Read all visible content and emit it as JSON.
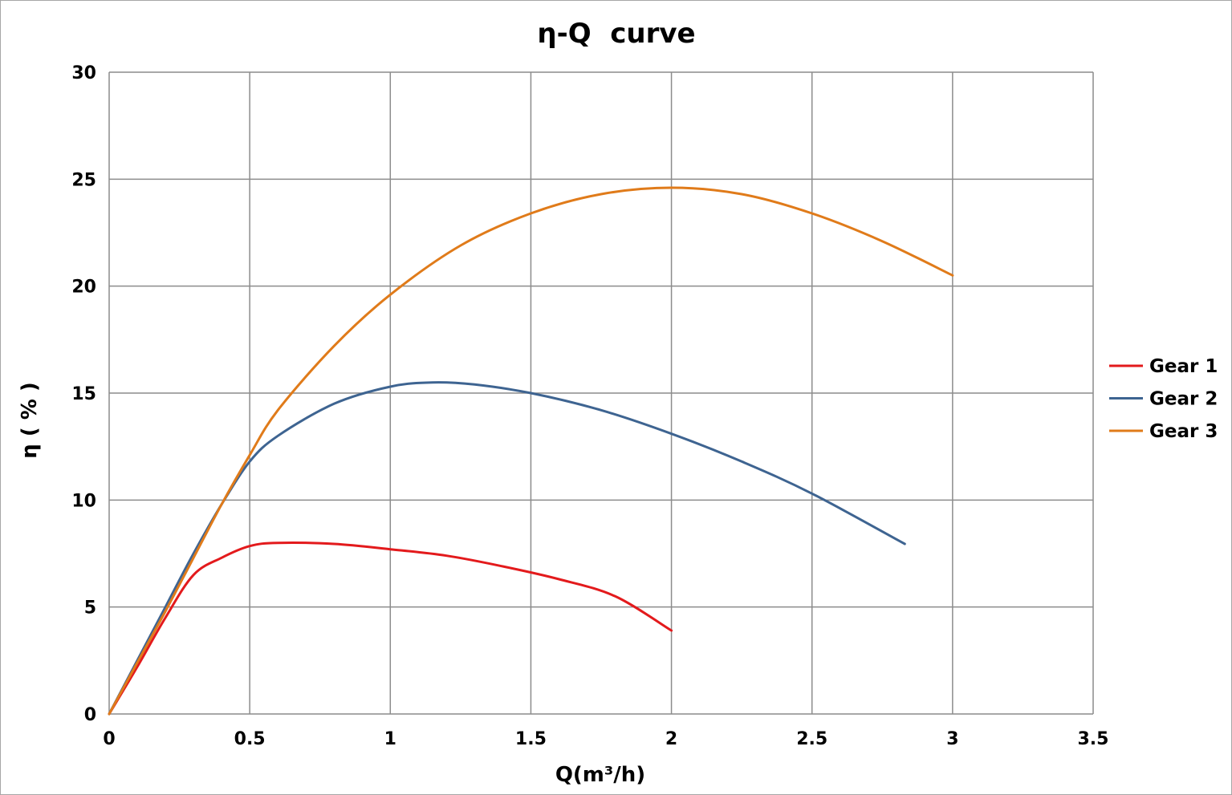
{
  "chart_data": {
    "type": "line",
    "title": "η-Q  curve",
    "xlabel": "Q(m³/h)",
    "ylabel": "η ( % )",
    "xlim": [
      0,
      3.5
    ],
    "ylim": [
      0,
      30
    ],
    "x_ticks": [
      "0",
      "0.5",
      "1",
      "1.5",
      "2",
      "2.5",
      "3",
      "3.5"
    ],
    "y_ticks": [
      "0",
      "5",
      "10",
      "15",
      "20",
      "25",
      "30"
    ],
    "grid": true,
    "legend_position": "right",
    "series": [
      {
        "name": "Gear 1",
        "color": "#e31a1c",
        "x": [
          0,
          0.1,
          0.2,
          0.3,
          0.4,
          0.5,
          0.6,
          0.8,
          1.0,
          1.2,
          1.4,
          1.6,
          1.8,
          2.0
        ],
        "y": [
          0,
          2.2,
          4.5,
          6.5,
          7.3,
          7.85,
          8.0,
          7.95,
          7.7,
          7.4,
          6.9,
          6.3,
          5.5,
          3.9
        ]
      },
      {
        "name": "Gear 2",
        "color": "#3e6491",
        "x": [
          0,
          0.1,
          0.2,
          0.3,
          0.4,
          0.5,
          0.6,
          0.8,
          1.0,
          1.15,
          1.3,
          1.5,
          1.75,
          2.0,
          2.25,
          2.5,
          2.83
        ],
        "y": [
          0,
          2.5,
          5.0,
          7.5,
          9.8,
          11.8,
          13.0,
          14.5,
          15.3,
          15.5,
          15.4,
          15.0,
          14.2,
          13.1,
          11.8,
          10.3,
          7.95
        ]
      },
      {
        "name": "Gear 3",
        "color": "#e07b1a",
        "x": [
          0,
          0.1,
          0.2,
          0.3,
          0.4,
          0.5,
          0.6,
          0.8,
          1.0,
          1.25,
          1.5,
          1.75,
          2.0,
          2.25,
          2.5,
          2.75,
          3.0
        ],
        "y": [
          0,
          2.4,
          4.8,
          7.3,
          9.8,
          12.1,
          14.2,
          17.2,
          19.6,
          21.9,
          23.4,
          24.3,
          24.6,
          24.3,
          23.4,
          22.1,
          20.5
        ]
      }
    ]
  }
}
